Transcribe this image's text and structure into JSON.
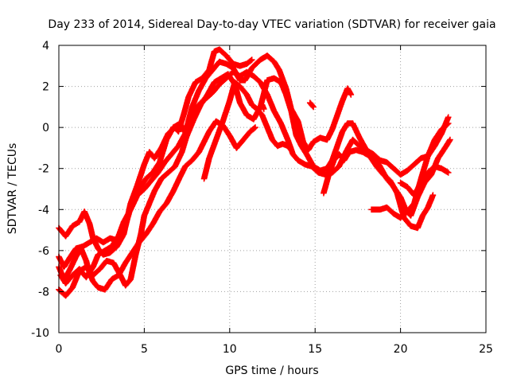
{
  "chart_data": {
    "type": "scatter",
    "title": "Day 233 of 2014, Sidereal Day-to-day VTEC variation (SDTVAR) for receiver gaia",
    "xlabel": "GPS time / hours",
    "ylabel": "SDTVAR / TECUs",
    "xlim": [
      0,
      25
    ],
    "ylim": [
      -10,
      4
    ],
    "xticks": [
      "0",
      "5",
      "10",
      "15",
      "20",
      "25"
    ],
    "yticks": [
      "4",
      "2",
      "0",
      "-2",
      "-4",
      "-6",
      "-8",
      "-10"
    ],
    "grid": true,
    "marker": "plus",
    "color": "#ff0000",
    "series": [
      {
        "name": "track-1",
        "points": [
          [
            0.0,
            -4.9
          ],
          [
            0.4,
            -5.3
          ],
          [
            0.8,
            -4.8
          ],
          [
            1.2,
            -4.6
          ],
          [
            1.5,
            -4.1
          ],
          [
            1.8,
            -4.7
          ],
          [
            2.0,
            -5.4
          ],
          [
            2.3,
            -5.9
          ],
          [
            2.6,
            -6.2
          ],
          [
            3.0,
            -6.1
          ],
          [
            3.4,
            -5.8
          ],
          [
            3.8,
            -5.2
          ],
          [
            4.2,
            -3.7
          ],
          [
            4.6,
            -2.8
          ],
          [
            5.0,
            -1.8
          ],
          [
            5.3,
            -1.2
          ],
          [
            5.6,
            -1.5
          ],
          [
            6.0,
            -1.0
          ],
          [
            6.4,
            -0.3
          ],
          [
            6.8,
            0.0
          ],
          [
            7.0,
            -0.2
          ],
          [
            7.3,
            0.6
          ],
          [
            7.6,
            1.5
          ],
          [
            8.0,
            2.2
          ],
          [
            8.4,
            2.4
          ],
          [
            8.8,
            2.8
          ],
          [
            9.1,
            3.7
          ],
          [
            9.4,
            3.8
          ],
          [
            9.8,
            3.5
          ],
          [
            10.2,
            3.1
          ],
          [
            10.6,
            3.0
          ],
          [
            11.0,
            3.1
          ],
          [
            11.3,
            3.3
          ]
        ]
      },
      {
        "name": "track-2",
        "points": [
          [
            0.0,
            -6.3
          ],
          [
            0.3,
            -6.8
          ],
          [
            0.6,
            -6.4
          ],
          [
            1.0,
            -5.9
          ],
          [
            1.4,
            -5.8
          ],
          [
            1.8,
            -5.6
          ],
          [
            2.2,
            -5.4
          ],
          [
            2.6,
            -5.6
          ],
          [
            3.0,
            -5.4
          ],
          [
            3.4,
            -5.5
          ],
          [
            3.8,
            -4.6
          ],
          [
            4.2,
            -4.0
          ],
          [
            4.6,
            -3.3
          ],
          [
            5.0,
            -3.0
          ],
          [
            5.4,
            -2.6
          ],
          [
            5.8,
            -2.2
          ],
          [
            6.2,
            -1.7
          ],
          [
            6.6,
            -1.3
          ],
          [
            7.0,
            -0.9
          ],
          [
            7.4,
            -0.3
          ],
          [
            7.8,
            1.0
          ],
          [
            8.2,
            1.8
          ],
          [
            8.6,
            2.4
          ],
          [
            9.0,
            2.8
          ],
          [
            9.4,
            3.2
          ],
          [
            9.8,
            3.1
          ],
          [
            10.2,
            2.9
          ],
          [
            10.6,
            2.3
          ],
          [
            10.9,
            2.3
          ],
          [
            11.3,
            2.9
          ],
          [
            11.8,
            3.3
          ],
          [
            12.2,
            3.5
          ],
          [
            12.6,
            3.2
          ],
          [
            12.9,
            2.8
          ],
          [
            13.3,
            1.9
          ],
          [
            13.6,
            0.9
          ],
          [
            14.0,
            0.3
          ],
          [
            14.3,
            -0.7
          ],
          [
            14.6,
            -1.1
          ],
          [
            14.9,
            -0.7
          ],
          [
            15.3,
            -0.5
          ],
          [
            15.7,
            -0.6
          ],
          [
            16.0,
            -0.1
          ],
          [
            16.3,
            0.6
          ],
          [
            16.6,
            1.3
          ],
          [
            16.9,
            1.9
          ],
          [
            17.1,
            1.6
          ]
        ]
      },
      {
        "name": "track-3",
        "points": [
          [
            0.1,
            -7.2
          ],
          [
            0.4,
            -7.6
          ],
          [
            0.8,
            -7.2
          ],
          [
            1.2,
            -6.9
          ],
          [
            1.6,
            -7.3
          ],
          [
            2.0,
            -6.8
          ],
          [
            2.3,
            -6.2
          ],
          [
            2.7,
            -6.0
          ],
          [
            3.1,
            -5.8
          ],
          [
            3.5,
            -5.3
          ],
          [
            3.9,
            -4.8
          ],
          [
            4.3,
            -3.6
          ],
          [
            4.7,
            -3.0
          ],
          [
            5.1,
            -2.5
          ],
          [
            5.5,
            -2.2
          ],
          [
            5.9,
            -1.7
          ],
          [
            6.3,
            -0.6
          ],
          [
            6.7,
            0.0
          ],
          [
            7.1,
            0.2
          ],
          [
            7.5,
            -0.4
          ],
          [
            7.9,
            0.4
          ],
          [
            8.3,
            1.1
          ],
          [
            8.7,
            1.6
          ],
          [
            9.1,
            2.2
          ],
          [
            9.5,
            2.4
          ],
          [
            9.9,
            2.6
          ],
          [
            10.3,
            2.1
          ],
          [
            10.6,
            1.2
          ],
          [
            11.0,
            0.6
          ],
          [
            11.4,
            0.4
          ],
          [
            11.8,
            1.0
          ],
          [
            12.2,
            2.3
          ],
          [
            12.6,
            2.4
          ],
          [
            13.0,
            2.2
          ],
          [
            13.3,
            1.6
          ],
          [
            13.6,
            0.8
          ],
          [
            13.9,
            -0.4
          ],
          [
            14.2,
            -0.9
          ],
          [
            14.5,
            -1.3
          ],
          [
            14.9,
            -1.9
          ],
          [
            15.3,
            -2.1
          ],
          [
            15.7,
            -2.0
          ],
          [
            16.0,
            -1.6
          ],
          [
            16.3,
            -0.9
          ],
          [
            16.6,
            -0.2
          ],
          [
            16.9,
            0.2
          ],
          [
            17.2,
            0.2
          ],
          [
            17.6,
            -0.5
          ],
          [
            18.0,
            -1.1
          ],
          [
            18.4,
            -1.3
          ],
          [
            18.8,
            -1.6
          ],
          [
            19.2,
            -1.7
          ],
          [
            19.6,
            -2.0
          ],
          [
            20.0,
            -2.3
          ],
          [
            20.4,
            -2.1
          ],
          [
            20.8,
            -1.8
          ],
          [
            21.2,
            -1.5
          ],
          [
            21.6,
            -1.4
          ],
          [
            22.0,
            -0.6
          ],
          [
            22.4,
            -0.1
          ],
          [
            22.8,
            0.2
          ]
        ]
      },
      {
        "name": "track-4",
        "points": [
          [
            0.0,
            -6.8
          ],
          [
            0.3,
            -7.4
          ],
          [
            0.6,
            -7.0
          ],
          [
            1.0,
            -6.3
          ],
          [
            1.3,
            -5.9
          ],
          [
            1.6,
            -6.5
          ],
          [
            1.8,
            -7.1
          ],
          [
            2.0,
            -7.5
          ],
          [
            2.3,
            -7.8
          ],
          [
            2.7,
            -7.9
          ],
          [
            3.1,
            -7.4
          ],
          [
            3.5,
            -7.2
          ],
          [
            3.9,
            -6.6
          ],
          [
            4.3,
            -6.1
          ],
          [
            4.7,
            -5.6
          ],
          [
            5.1,
            -5.2
          ],
          [
            5.5,
            -4.7
          ],
          [
            5.9,
            -4.1
          ],
          [
            6.3,
            -3.7
          ],
          [
            6.7,
            -3.1
          ],
          [
            7.1,
            -2.4
          ],
          [
            7.4,
            -1.9
          ],
          [
            7.8,
            -1.6
          ],
          [
            8.2,
            -1.2
          ],
          [
            8.5,
            -0.7
          ],
          [
            8.8,
            -0.2
          ],
          [
            9.2,
            0.3
          ],
          [
            9.6,
            0.1
          ],
          [
            10.0,
            -0.4
          ],
          [
            10.4,
            -1.0
          ],
          [
            10.8,
            -0.6
          ],
          [
            11.2,
            -0.2
          ],
          [
            11.5,
            0.0
          ]
        ]
      },
      {
        "name": "track-5",
        "points": [
          [
            0.0,
            -7.9
          ],
          [
            0.4,
            -8.2
          ],
          [
            0.8,
            -7.8
          ],
          [
            1.2,
            -7.0
          ],
          [
            1.6,
            -6.8
          ],
          [
            2.0,
            -7.2
          ],
          [
            2.4,
            -6.9
          ],
          [
            2.8,
            -6.5
          ],
          [
            3.2,
            -6.6
          ],
          [
            3.6,
            -7.2
          ],
          [
            3.9,
            -7.7
          ],
          [
            4.2,
            -7.4
          ],
          [
            4.5,
            -6.2
          ],
          [
            4.8,
            -5.2
          ],
          [
            5.0,
            -4.3
          ],
          [
            5.3,
            -3.7
          ],
          [
            5.6,
            -3.1
          ],
          [
            6.0,
            -2.5
          ],
          [
            6.4,
            -2.2
          ],
          [
            6.8,
            -1.9
          ],
          [
            7.2,
            -1.2
          ],
          [
            7.6,
            -0.1
          ],
          [
            8.0,
            0.9
          ],
          [
            8.3,
            1.2
          ],
          [
            8.6,
            1.4
          ],
          [
            9.0,
            1.7
          ],
          [
            9.4,
            2.1
          ],
          [
            9.8,
            2.4
          ],
          [
            10.2,
            2.7
          ],
          [
            10.6,
            2.5
          ],
          [
            11.0,
            2.7
          ],
          [
            11.4,
            2.5
          ],
          [
            11.8,
            2.2
          ],
          [
            12.2,
            1.6
          ],
          [
            12.6,
            0.8
          ],
          [
            13.0,
            0.2
          ],
          [
            13.4,
            -0.6
          ],
          [
            13.7,
            -1.3
          ],
          [
            14.0,
            -1.6
          ],
          [
            14.4,
            -1.8
          ],
          [
            14.8,
            -1.9
          ],
          [
            15.2,
            -2.2
          ],
          [
            15.6,
            -2.3
          ],
          [
            16.0,
            -2.2
          ],
          [
            16.4,
            -1.9
          ],
          [
            16.8,
            -1.2
          ],
          [
            17.2,
            -0.6
          ],
          [
            17.6,
            -0.9
          ],
          [
            18.0,
            -1.2
          ],
          [
            18.4,
            -1.4
          ],
          [
            18.8,
            -1.9
          ],
          [
            19.2,
            -2.5
          ],
          [
            19.6,
            -2.9
          ],
          [
            20.0,
            -3.4
          ],
          [
            20.3,
            -4.0
          ],
          [
            20.6,
            -4.3
          ],
          [
            21.0,
            -3.4
          ],
          [
            21.4,
            -2.7
          ],
          [
            21.8,
            -2.3
          ],
          [
            22.2,
            -1.5
          ],
          [
            22.6,
            -1.0
          ],
          [
            22.9,
            -0.6
          ]
        ]
      },
      {
        "name": "track-6",
        "points": [
          [
            8.5,
            -2.5
          ],
          [
            8.8,
            -1.5
          ],
          [
            9.2,
            -0.6
          ],
          [
            9.6,
            0.3
          ],
          [
            10.0,
            1.3
          ],
          [
            10.3,
            2.2
          ],
          [
            10.6,
            2.0
          ],
          [
            11.0,
            1.6
          ],
          [
            11.3,
            1.1
          ],
          [
            11.6,
            0.9
          ],
          [
            11.9,
            0.6
          ],
          [
            12.2,
            0.0
          ],
          [
            12.5,
            -0.6
          ],
          [
            12.8,
            -0.9
          ],
          [
            13.1,
            -0.8
          ],
          [
            13.4,
            -0.9
          ],
          [
            13.6,
            -1.1
          ]
        ]
      },
      {
        "name": "track-7",
        "points": [
          [
            15.5,
            -3.2
          ],
          [
            15.8,
            -2.3
          ],
          [
            16.1,
            -1.6
          ],
          [
            16.4,
            -1.3
          ],
          [
            16.7,
            -1.6
          ],
          [
            17.0,
            -1.2
          ],
          [
            17.4,
            -1.1
          ],
          [
            17.8,
            -1.2
          ],
          [
            18.2,
            -1.4
          ],
          [
            18.6,
            -1.9
          ],
          [
            19.0,
            -2.3
          ],
          [
            19.4,
            -2.6
          ],
          [
            19.8,
            -3.2
          ],
          [
            20.2,
            -4.4
          ],
          [
            20.6,
            -4.8
          ],
          [
            21.0,
            -4.9
          ],
          [
            21.3,
            -4.3
          ],
          [
            21.6,
            -3.9
          ],
          [
            21.9,
            -3.3
          ]
        ]
      },
      {
        "name": "track-8",
        "points": [
          [
            18.3,
            -4.0
          ],
          [
            18.8,
            -4.0
          ],
          [
            19.2,
            -3.9
          ],
          [
            19.6,
            -4.2
          ],
          [
            20.0,
            -4.4
          ],
          [
            20.4,
            -4.1
          ],
          [
            20.8,
            -3.7
          ],
          [
            21.2,
            -2.5
          ],
          [
            21.6,
            -1.4
          ],
          [
            22.0,
            -0.9
          ],
          [
            22.4,
            -0.3
          ],
          [
            22.8,
            0.5
          ]
        ]
      },
      {
        "name": "track-9",
        "points": [
          [
            20.0,
            -2.7
          ],
          [
            20.4,
            -2.9
          ],
          [
            20.8,
            -3.3
          ],
          [
            21.2,
            -2.7
          ],
          [
            21.6,
            -2.2
          ],
          [
            22.0,
            -1.9
          ],
          [
            22.4,
            -2.0
          ],
          [
            22.8,
            -2.2
          ]
        ]
      },
      {
        "name": "track-10",
        "points": [
          [
            11.9,
            1.1
          ],
          [
            12.0,
            0.9
          ]
        ]
      },
      {
        "name": "track-11",
        "points": [
          [
            14.7,
            1.2
          ],
          [
            14.9,
            1.0
          ]
        ]
      }
    ]
  }
}
